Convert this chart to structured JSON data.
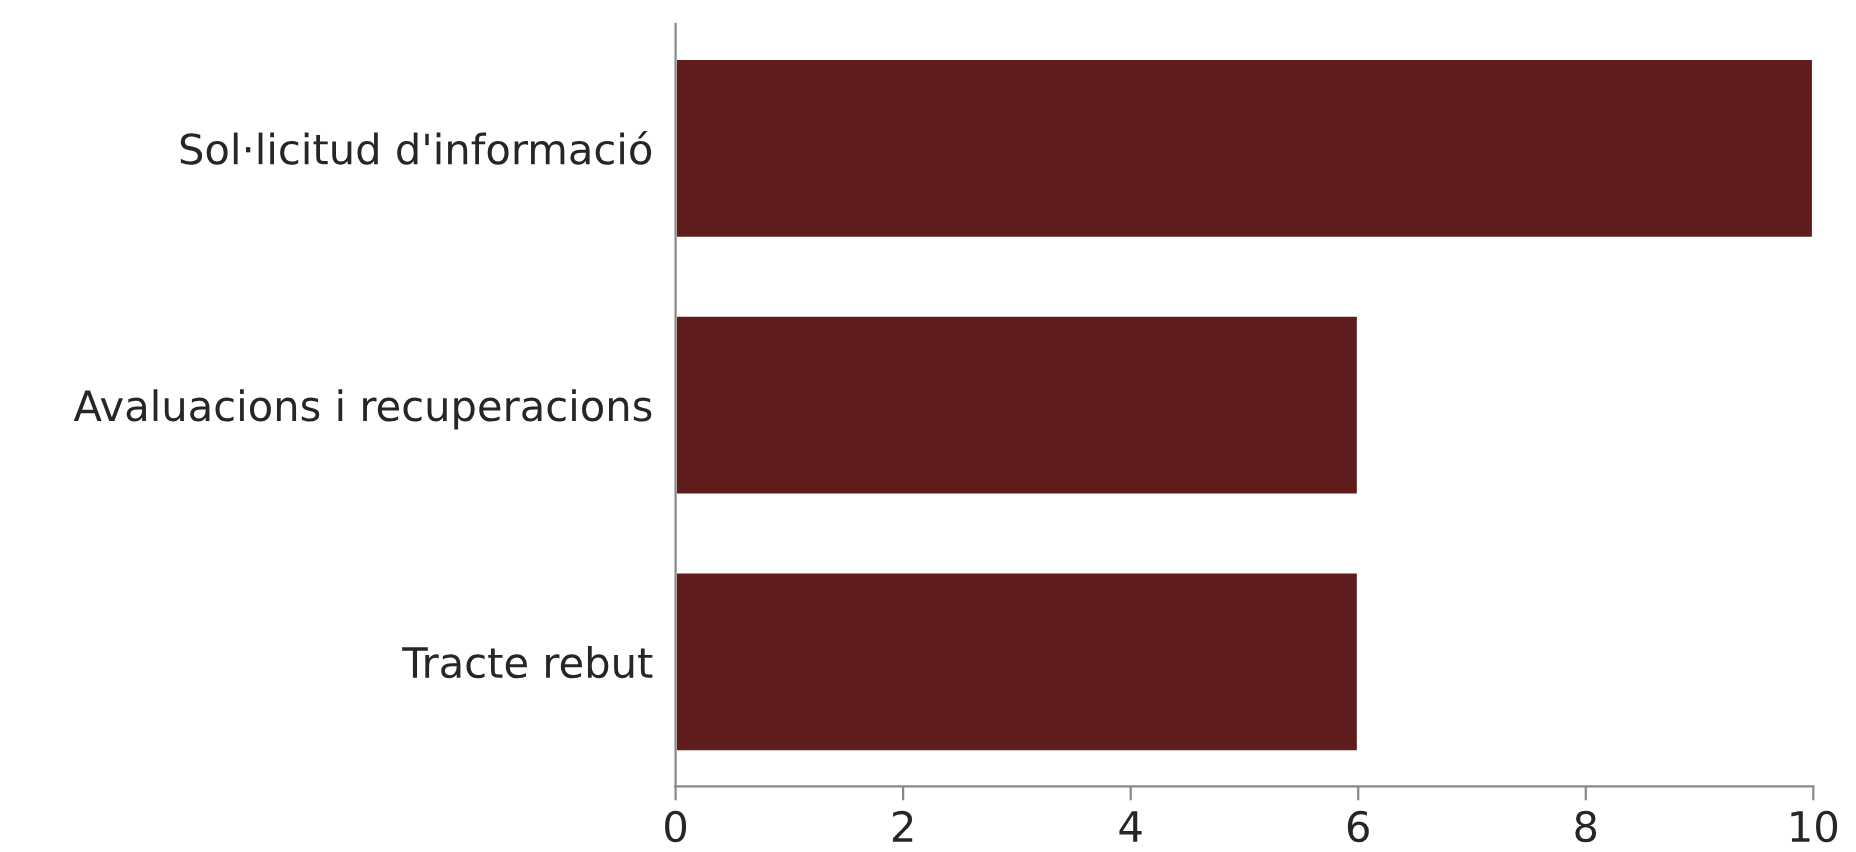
{
  "chart_data": {
    "type": "bar",
    "orientation": "horizontal",
    "categories": [
      "Sol·licitud d'informació",
      "Avaluacions i recuperacions",
      "Tracte rebut"
    ],
    "values": [
      10,
      6,
      6
    ],
    "color": "#5e1c1c",
    "xlim": [
      0,
      10
    ],
    "xticks": [
      0,
      2,
      4,
      6,
      8,
      10
    ],
    "grid": false,
    "legend": false
  }
}
